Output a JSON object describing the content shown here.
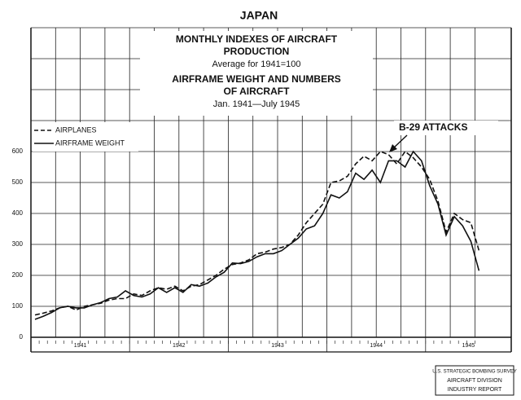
{
  "chart_data": {
    "type": "line",
    "title": "JAPAN",
    "subtitle_lines": [
      "MONTHLY INDEXES OF AIRCRAFT",
      "PRODUCTION",
      "Average for 1941=100",
      "AIRFRAME WEIGHT AND NUMBERS",
      "OF AIRCRAFT",
      "Jan. 1941—July 1945"
    ],
    "categories": [
      null,
      null,
      null,
      null,
      null,
      null,
      null,
      null,
      null,
      null,
      null,
      null,
      null,
      null,
      null,
      null,
      null,
      null,
      null,
      null,
      null,
      null,
      null,
      null,
      null,
      null,
      null,
      null,
      null,
      null,
      null,
      null,
      null,
      null,
      null,
      null,
      null,
      null,
      null,
      null,
      null,
      null,
      null,
      null,
      null,
      null,
      null,
      null,
      null,
      null,
      null,
      null,
      null,
      null,
      null
    ],
    "years": [
      "1941",
      "1942",
      "1943",
      "1944",
      "1945"
    ],
    "series": [
      {
        "name": "AIRPLANES",
        "color": "#111111",
        "dashed": true,
        "values": [
          72,
          78,
          85,
          95,
          100,
          88,
          100,
          105,
          110,
          120,
          125,
          125,
          140,
          135,
          150,
          160,
          155,
          165,
          150,
          165,
          170,
          185,
          200,
          220,
          235,
          240,
          250,
          270,
          275,
          285,
          290,
          300,
          330,
          370,
          400,
          430,
          500,
          505,
          520,
          560,
          585,
          570,
          600,
          590,
          560,
          600,
          580,
          550,
          510,
          440,
          340,
          400,
          380,
          370,
          280
        ]
      },
      {
        "name": "AIRFRAME WEIGHT",
        "color": "#111111",
        "dashed": false,
        "values": [
          58,
          68,
          80,
          95,
          100,
          95,
          95,
          105,
          112,
          125,
          130,
          150,
          135,
          130,
          140,
          160,
          145,
          160,
          145,
          170,
          165,
          175,
          195,
          210,
          240,
          238,
          245,
          260,
          270,
          270,
          280,
          300,
          320,
          350,
          360,
          400,
          460,
          450,
          470,
          530,
          510,
          540,
          500,
          570,
          570,
          550,
          600,
          570,
          490,
          430,
          330,
          390,
          360,
          310,
          215
        ]
      }
    ],
    "ylim": [
      0,
      1000
    ],
    "yticks": [
      0,
      100,
      200,
      300,
      400,
      500,
      600
    ],
    "upper_gridlines": [
      700,
      800,
      900,
      1000
    ],
    "annotation": "B-29 ATTACKS",
    "source_lines": [
      "U.S. STRATEGIC BOMBING SURVEY",
      "AIRCRAFT DIVISION",
      "INDUSTRY REPORT"
    ],
    "grid": true
  }
}
